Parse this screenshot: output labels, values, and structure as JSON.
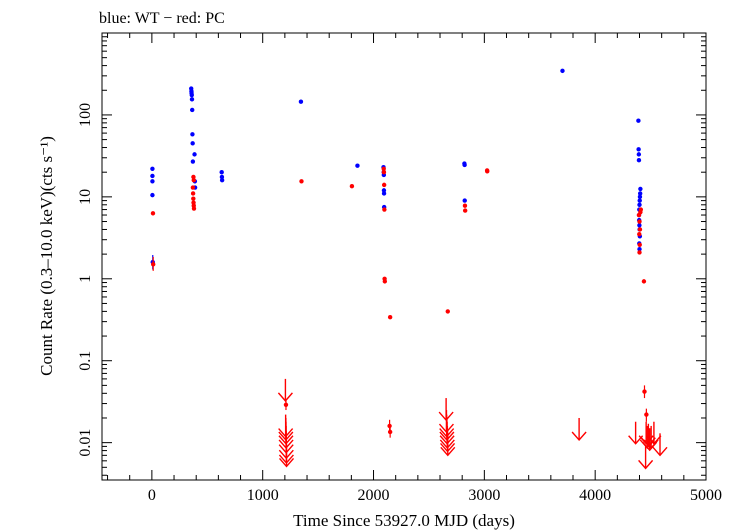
{
  "chart_data": {
    "type": "scatter",
    "title": "blue: WT − red: PC",
    "xlabel": "Time Since 53927.0 MJD (days)",
    "ylabel": "Count Rate (0.3–10.0 keV)(cts s⁻¹)",
    "y_scale": "log",
    "xlim": [
      -450,
      5000
    ],
    "ylim": [
      0.0035,
      1000
    ],
    "grid": false,
    "x_ticks": [
      {
        "value": 0,
        "label": "0"
      },
      {
        "value": 1000,
        "label": "1000"
      },
      {
        "value": 2000,
        "label": "2000"
      },
      {
        "value": 3000,
        "label": "3000"
      },
      {
        "value": 4000,
        "label": "4000"
      },
      {
        "value": 5000,
        "label": "5000"
      }
    ],
    "y_ticks": [
      {
        "value": 0.01,
        "label": "0.01"
      },
      {
        "value": 0.1,
        "label": "0.1"
      },
      {
        "value": 1,
        "label": "1"
      },
      {
        "value": 10,
        "label": "10"
      },
      {
        "value": 100,
        "label": "100"
      }
    ],
    "series": [
      {
        "name": "WT",
        "color": "#0000ff",
        "marker": "point",
        "points": [
          {
            "x": 5,
            "y": 22
          },
          {
            "x": 5,
            "y": 18
          },
          {
            "x": 5,
            "y": 15.5
          },
          {
            "x": 5,
            "y": 10.5
          },
          {
            "x": 8,
            "y": 1.6,
            "err": [
              1.3,
              1.95
            ]
          },
          {
            "x": 355,
            "y": 210
          },
          {
            "x": 357,
            "y": 195
          },
          {
            "x": 358,
            "y": 185
          },
          {
            "x": 360,
            "y": 175
          },
          {
            "x": 362,
            "y": 155
          },
          {
            "x": 364,
            "y": 115
          },
          {
            "x": 366,
            "y": 58
          },
          {
            "x": 368,
            "y": 45
          },
          {
            "x": 370,
            "y": 27
          },
          {
            "x": 385,
            "y": 33
          },
          {
            "x": 388,
            "y": 15.5
          },
          {
            "x": 390,
            "y": 13
          },
          {
            "x": 630,
            "y": 20
          },
          {
            "x": 632,
            "y": 17.5
          },
          {
            "x": 634,
            "y": 16
          },
          {
            "x": 1345,
            "y": 145
          },
          {
            "x": 1855,
            "y": 24
          },
          {
            "x": 2090,
            "y": 23
          },
          {
            "x": 2092,
            "y": 20
          },
          {
            "x": 2093,
            "y": 18.5
          },
          {
            "x": 2094,
            "y": 12
          },
          {
            "x": 2095,
            "y": 11
          },
          {
            "x": 2096,
            "y": 7.5
          },
          {
            "x": 2820,
            "y": 25.5
          },
          {
            "x": 2822,
            "y": 24.5
          },
          {
            "x": 2823,
            "y": 9
          },
          {
            "x": 3705,
            "y": 345
          },
          {
            "x": 4390,
            "y": 85
          },
          {
            "x": 4392,
            "y": 38
          },
          {
            "x": 4394,
            "y": 33
          },
          {
            "x": 4395,
            "y": 28
          },
          {
            "x": 4408,
            "y": 12.5
          },
          {
            "x": 4406,
            "y": 11
          },
          {
            "x": 4404,
            "y": 10
          },
          {
            "x": 4402,
            "y": 9
          },
          {
            "x": 4400,
            "y": 8
          },
          {
            "x": 4398,
            "y": 7
          },
          {
            "x": 4396,
            "y": 6
          },
          {
            "x": 4397,
            "y": 5.2
          },
          {
            "x": 4399,
            "y": 4.5
          },
          {
            "x": 4401,
            "y": 4
          },
          {
            "x": 4403,
            "y": 3.3
          },
          {
            "x": 4398,
            "y": 2.7
          },
          {
            "x": 4400,
            "y": 2.3
          }
        ]
      },
      {
        "name": "PC",
        "color": "#ff0000",
        "marker": "point",
        "points": [
          {
            "x": 10,
            "y": 6.3
          },
          {
            "x": 12,
            "y": 1.5,
            "err": [
              1.25,
              1.85
            ]
          },
          {
            "x": 375,
            "y": 17.5
          },
          {
            "x": 378,
            "y": 16
          },
          {
            "x": 370,
            "y": 13
          },
          {
            "x": 372,
            "y": 11
          },
          {
            "x": 374,
            "y": 9.5
          },
          {
            "x": 376,
            "y": 8.5
          },
          {
            "x": 378,
            "y": 7.8
          },
          {
            "x": 380,
            "y": 7.2
          },
          {
            "x": 1210,
            "y": 0.029,
            "err": [
              0.025,
              0.034
            ]
          },
          {
            "x": 1350,
            "y": 15.5
          },
          {
            "x": 1805,
            "y": 13.5
          },
          {
            "x": 2092,
            "y": 22
          },
          {
            "x": 2094,
            "y": 20
          },
          {
            "x": 2096,
            "y": 14
          },
          {
            "x": 2098,
            "y": 7
          },
          {
            "x": 2100,
            "y": 1
          },
          {
            "x": 2102,
            "y": 0.93
          },
          {
            "x": 2150,
            "y": 0.34
          },
          {
            "x": 2145,
            "y": 0.016,
            "err": [
              0.0135,
              0.019
            ]
          },
          {
            "x": 2150,
            "y": 0.0135,
            "err": [
              0.0115,
              0.0155
            ]
          },
          {
            "x": 2670,
            "y": 0.4
          },
          {
            "x": 2825,
            "y": 7.8
          },
          {
            "x": 2827,
            "y": 6.8
          },
          {
            "x": 3025,
            "y": 21
          },
          {
            "x": 3026,
            "y": 20.5
          },
          {
            "x": 4395,
            "y": 6
          },
          {
            "x": 4400,
            "y": 5
          },
          {
            "x": 4404,
            "y": 4
          },
          {
            "x": 4398,
            "y": 3.5
          },
          {
            "x": 4402,
            "y": 2.6
          },
          {
            "x": 4400,
            "y": 2.1
          },
          {
            "x": 4408,
            "y": 6.5
          },
          {
            "x": 4412,
            "y": 7
          },
          {
            "x": 4440,
            "y": 0.93
          },
          {
            "x": 4445,
            "y": 0.042,
            "err": [
              0.035,
              0.05
            ]
          },
          {
            "x": 4462,
            "y": 0.022,
            "err": [
              0.018,
              0.026
            ]
          }
        ]
      },
      {
        "name": "PC upper limits",
        "color": "#ff0000",
        "marker": "down-arrow",
        "points": [
          {
            "x": 1205,
            "y": 0.06
          },
          {
            "x": 1207,
            "y": 0.022
          },
          {
            "x": 1209,
            "y": 0.02
          },
          {
            "x": 1210,
            "y": 0.018
          },
          {
            "x": 1211,
            "y": 0.016
          },
          {
            "x": 1212,
            "y": 0.014
          },
          {
            "x": 1213,
            "y": 0.012
          },
          {
            "x": 1214,
            "y": 0.0105
          },
          {
            "x": 1215,
            "y": 0.0095
          },
          {
            "x": 2655,
            "y": 0.035
          },
          {
            "x": 2658,
            "y": 0.025
          },
          {
            "x": 2660,
            "y": 0.022
          },
          {
            "x": 2662,
            "y": 0.02
          },
          {
            "x": 2664,
            "y": 0.018
          },
          {
            "x": 2666,
            "y": 0.016
          },
          {
            "x": 2668,
            "y": 0.0145
          },
          {
            "x": 2670,
            "y": 0.013
          },
          {
            "x": 3855,
            "y": 0.02
          },
          {
            "x": 4365,
            "y": 0.018
          },
          {
            "x": 4455,
            "y": 0.009
          },
          {
            "x": 4460,
            "y": 0.018
          },
          {
            "x": 4470,
            "y": 0.016
          },
          {
            "x": 4480,
            "y": 0.017
          },
          {
            "x": 4492,
            "y": 0.015
          },
          {
            "x": 4505,
            "y": 0.016
          },
          {
            "x": 4530,
            "y": 0.018
          },
          {
            "x": 4585,
            "y": 0.013
          }
        ]
      }
    ]
  }
}
